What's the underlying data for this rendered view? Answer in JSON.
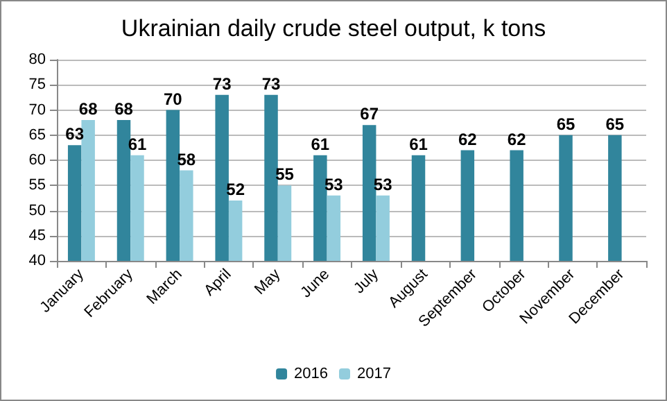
{
  "chart_data": {
    "type": "bar",
    "title": "Ukrainian daily crude steel output, k tons",
    "categories": [
      "January",
      "February",
      "March",
      "April",
      "May",
      "June",
      "July",
      "August",
      "September",
      "October",
      "November",
      "December"
    ],
    "series": [
      {
        "name": "2016",
        "color": "#31859c",
        "values": [
          63,
          68,
          70,
          73,
          73,
          61,
          67,
          61,
          62,
          62,
          65,
          65
        ]
      },
      {
        "name": "2017",
        "color": "#93cddd",
        "values": [
          68,
          61,
          58,
          52,
          55,
          53,
          53,
          null,
          null,
          null,
          null,
          null
        ]
      }
    ],
    "ylim": [
      40,
      80
    ],
    "yticks": [
      40,
      45,
      50,
      55,
      60,
      65,
      70,
      75,
      80
    ],
    "grid": "y",
    "legend": "bottom",
    "data_labels": true
  }
}
